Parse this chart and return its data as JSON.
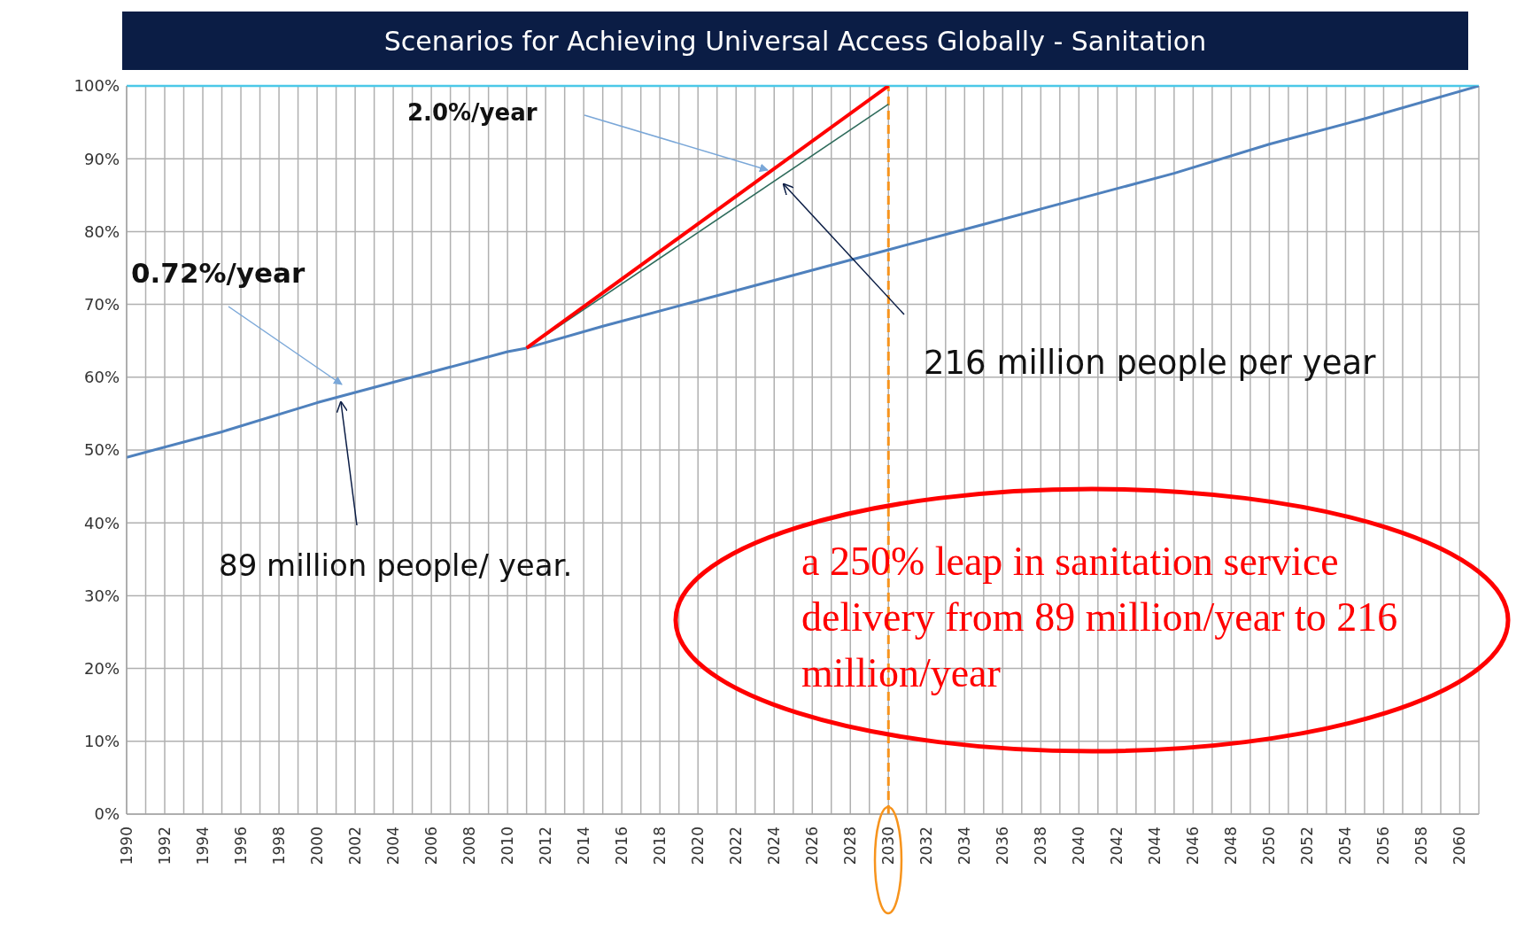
{
  "chart_data": {
    "type": "line",
    "title": "Scenarios for Achieving Universal Access Globally - Sanitation",
    "series": [
      {
        "color": "#4f81bd",
        "x": [
          1990,
          1995,
          2000,
          2005,
          2010,
          2011,
          2015,
          2020,
          2025,
          2030,
          2035,
          2040,
          2045,
          2050,
          2055,
          2061
        ],
        "values": [
          49,
          52.5,
          56.5,
          60,
          63.5,
          64,
          67,
          70.5,
          74,
          77.5,
          81,
          84.5,
          88,
          92,
          95.5,
          100
        ]
      },
      {
        "color": "#2e6b5b",
        "x": [
          2011,
          2030
        ],
        "values": [
          64,
          97.5
        ]
      },
      {
        "color": "#ff0000",
        "x": [
          2011,
          2030
        ],
        "values": [
          64,
          100
        ]
      }
    ],
    "xlim": [
      1990,
      2061
    ],
    "xticks": [
      1990,
      {
        "value": 1991,
        "label": null
      },
      1992,
      {
        "value": 1993,
        "label": null
      },
      1994,
      {
        "value": 1995,
        "label": null
      },
      1996,
      {
        "value": 1997,
        "label": null
      },
      1998,
      {
        "value": 1999,
        "label": null
      },
      2000,
      {
        "value": 2001,
        "label": null
      },
      2002,
      {
        "value": 2003,
        "label": null
      },
      2004,
      {
        "value": 2005,
        "label": null
      },
      2006,
      {
        "value": 2007,
        "label": null
      },
      2008,
      {
        "value": 2009,
        "label": null
      },
      2010,
      {
        "value": 2011,
        "label": null
      },
      2012,
      {
        "value": 2013,
        "label": null
      },
      2014,
      {
        "value": 2015,
        "label": null
      },
      2016,
      {
        "value": 2017,
        "label": null
      },
      2018,
      {
        "value": 2019,
        "label": null
      },
      2020,
      {
        "value": 2021,
        "label": null
      },
      2022,
      {
        "value": 2023,
        "label": null
      },
      2024,
      {
        "value": 2025,
        "label": null
      },
      2026,
      {
        "value": 2027,
        "label": null
      },
      2028,
      {
        "value": 2029,
        "label": null
      },
      2030,
      {
        "value": 2031,
        "label": null
      },
      2032,
      {
        "value": 2033,
        "label": null
      },
      2034,
      {
        "value": 2035,
        "label": null
      },
      2036,
      {
        "value": 2037,
        "label": null
      },
      2038,
      {
        "value": 2039,
        "label": null
      },
      2040,
      {
        "value": 2041,
        "label": null
      },
      2042,
      {
        "value": 2043,
        "label": null
      },
      2044,
      {
        "value": 2045,
        "label": null
      },
      2046,
      {
        "value": 2047,
        "label": null
      },
      2048,
      {
        "value": 2049,
        "label": null
      },
      2050,
      {
        "value": 2051,
        "label": null
      },
      2052,
      {
        "value": 2053,
        "label": null
      },
      2054,
      {
        "value": 2055,
        "label": null
      },
      2056,
      {
        "value": 2057,
        "label": null
      },
      2058,
      {
        "value": 2059,
        "label": null
      },
      2060,
      {
        "value": 2061,
        "label": null
      }
    ],
    "ylim": [
      0,
      100
    ],
    "yticks": [
      {
        "value": 0,
        "label": "0%"
      },
      {
        "value": 10,
        "label": "10%"
      },
      {
        "value": 20,
        "label": "20%"
      },
      {
        "value": 30,
        "label": "30%"
      },
      {
        "value": 40,
        "label": "40%"
      },
      {
        "value": 50,
        "label": "50%"
      },
      {
        "value": 60,
        "label": "60%"
      },
      {
        "value": 70,
        "label": "70%"
      },
      {
        "value": 80,
        "label": "80%"
      },
      {
        "value": 90,
        "label": "90%"
      },
      {
        "value": 100,
        "label": "100%"
      }
    ],
    "grid": true,
    "marker": "none",
    "line_style": "solid",
    "ref_lines": [
      {
        "axis": "y",
        "value": 100,
        "color": "#4bc8e8",
        "line_style": "solid"
      },
      {
        "axis": "x",
        "value": 2030,
        "color": "#f7941d",
        "line_style": "dashed"
      }
    ],
    "annotations": [
      "2.0%/year",
      "0.72%/year",
      "89 million people/ year.",
      "216 million people per year",
      "a 250% leap in sanitation service delivery from 89 million/year to 216 million/year"
    ]
  }
}
